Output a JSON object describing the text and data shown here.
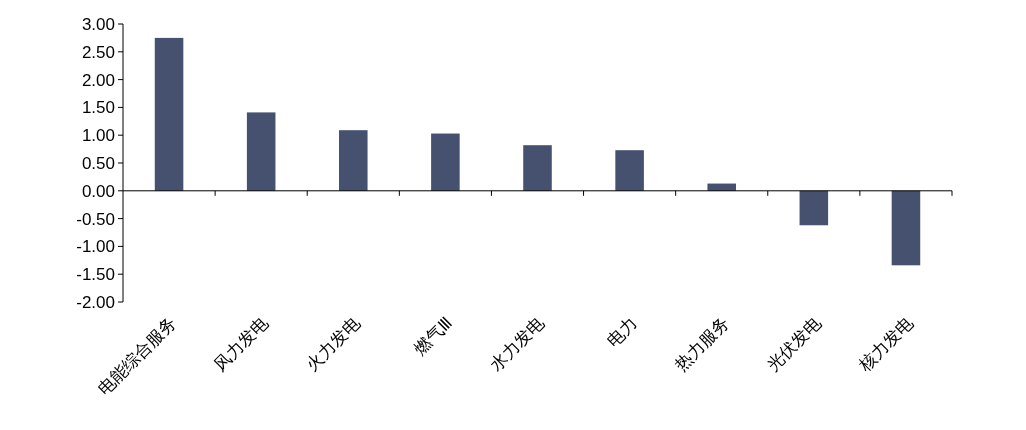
{
  "chart_data": {
    "type": "bar",
    "categories": [
      "电能综合服务",
      "风力发电",
      "火力发电",
      "燃气Ⅲ",
      "水力发电",
      "电力",
      "热力服务",
      "光伏发电",
      "核力发电"
    ],
    "values": [
      2.75,
      1.41,
      1.09,
      1.03,
      0.82,
      0.73,
      0.13,
      -0.62,
      -1.34
    ],
    "color": "#465170",
    "ylim": [
      -2,
      3
    ],
    "yticks": [
      {
        "value": -2,
        "label": "-2.00"
      },
      {
        "value": -1.5,
        "label": "-1.50"
      },
      {
        "value": -1,
        "label": "-1.00"
      },
      {
        "value": -0.5,
        "label": "-0.50"
      },
      {
        "value": 0,
        "label": "0.00"
      },
      {
        "value": 0.5,
        "label": "0.50"
      },
      {
        "value": 1,
        "label": "1.00"
      },
      {
        "value": 1.5,
        "label": "1.50"
      },
      {
        "value": 2,
        "label": "2.00"
      },
      {
        "value": 2.5,
        "label": "2.50"
      },
      {
        "value": 3,
        "label": "3.00"
      }
    ]
  }
}
